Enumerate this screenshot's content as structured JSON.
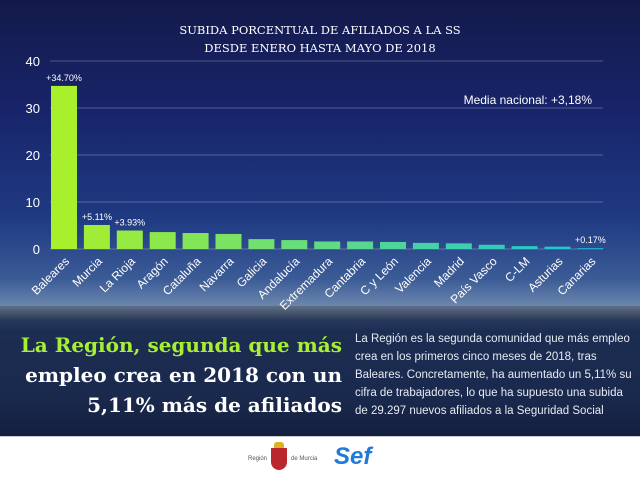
{
  "chart_data": {
    "type": "bar",
    "title": [
      "SUBIDA PORCENTUAL DE AFILIADOS A LA SS",
      "DESDE ENERO HASTA MAYO DE 2018"
    ],
    "categories": [
      "Baleares",
      "Murcia",
      "La Rioja",
      "Aragón",
      "Cataluña",
      "Navarra",
      "Galicia",
      "Andalucía",
      "Extremadura",
      "Cantabria",
      "C y León",
      "Valencia",
      "Madrid",
      "País Vasco",
      "C-LM",
      "Asturias",
      "Canarias"
    ],
    "values": [
      34.7,
      5.11,
      3.93,
      3.6,
      3.4,
      3.2,
      2.1,
      1.9,
      1.6,
      1.6,
      1.5,
      1.3,
      1.2,
      0.9,
      0.6,
      0.5,
      0.17
    ],
    "data_labels": {
      "0": "+34.70%",
      "1": "+5.11%",
      "2": "+3.93%",
      "16": "+0.17%"
    },
    "ylim": [
      0,
      40
    ],
    "yticks": [
      0,
      10,
      20,
      30,
      40
    ],
    "grid": true,
    "annotation": "Media nacional: +3,18%",
    "colors": {
      "start": "#a8f02c",
      "end": "#18c4dc"
    }
  },
  "headline": {
    "line1": "La Región, segunda que más",
    "line2": "empleo crea en 2018 con un",
    "line3": "5,11% más de afiliados"
  },
  "body_text": "La Región es la segunda comunidad que más empleo crea en los primeros cinco meses de 2018, tras Baleares. Concretamente, ha aumentado un 5,11% su cifra de trabajadores, lo que ha supuesto una subida de 29.297 nuevos afiliados a la Seguridad Social",
  "footer": {
    "logo1_left": "Región",
    "logo1_right": "de Murcia",
    "logo2": "Sef"
  }
}
